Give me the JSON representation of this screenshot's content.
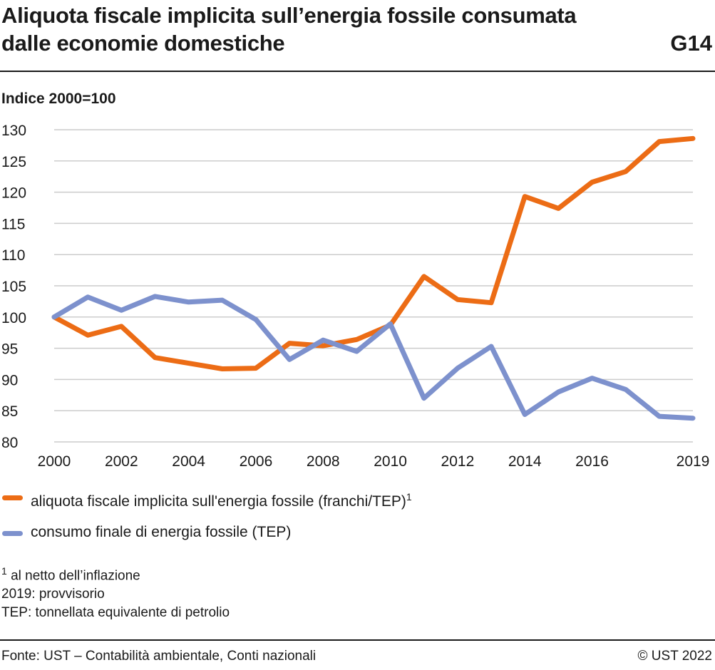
{
  "header": {
    "title_line1": "Aliquota fiscale implicita sull’energia fossile consumata",
    "title_line2": "dalle economie domestiche",
    "code": "G14"
  },
  "colors": {
    "series1": "#ec6c15",
    "series2": "#7d91cd",
    "grid": "#cccccc"
  },
  "chart_data": {
    "type": "line",
    "ylabel": "Indice 2000=100",
    "ylim": [
      80,
      130
    ],
    "yticks": [
      80,
      85,
      90,
      95,
      100,
      105,
      110,
      115,
      120,
      125,
      130
    ],
    "xlim": [
      2000,
      2019
    ],
    "xtick_labels": [
      "2000",
      "2002",
      "2004",
      "2006",
      "2008",
      "2010",
      "2012",
      "2014",
      "2016",
      "2019"
    ],
    "grid": true,
    "legend_position": "bottom",
    "x": [
      2000,
      2001,
      2002,
      2003,
      2004,
      2005,
      2006,
      2007,
      2008,
      2009,
      2010,
      2011,
      2012,
      2013,
      2014,
      2015,
      2016,
      2017,
      2018,
      2019
    ],
    "series": [
      {
        "name": "aliquota fiscale implicita sull'energia fossile (franchi/TEP)",
        "footnote_mark": "1",
        "color": "#ec6c15",
        "values": [
          100,
          97.1,
          98.5,
          93.5,
          92.6,
          91.7,
          91.8,
          95.8,
          95.4,
          96.4,
          98.7,
          106.5,
          102.8,
          102.3,
          119.3,
          117.4,
          121.6,
          123.3,
          128.1,
          128.6
        ]
      },
      {
        "name": "consumo finale di energia fossile (TEP)",
        "color": "#7d91cd",
        "values": [
          100,
          103.2,
          101.1,
          103.3,
          102.4,
          102.7,
          99.6,
          93.2,
          96.3,
          94.5,
          98.9,
          87.0,
          91.8,
          95.3,
          84.4,
          88.0,
          90.2,
          88.4,
          84.1,
          83.8
        ]
      }
    ]
  },
  "notes": {
    "note1_mark": "1",
    "note1_text": " al netto dell’inflazione",
    "note2": "2019: provvisorio",
    "note3": "TEP: tonnellata equivalente di petrolio"
  },
  "footer": {
    "source": "Fonte: UST – Contabilità ambientale, Conti nazionali",
    "copyright": "© UST 2022"
  }
}
